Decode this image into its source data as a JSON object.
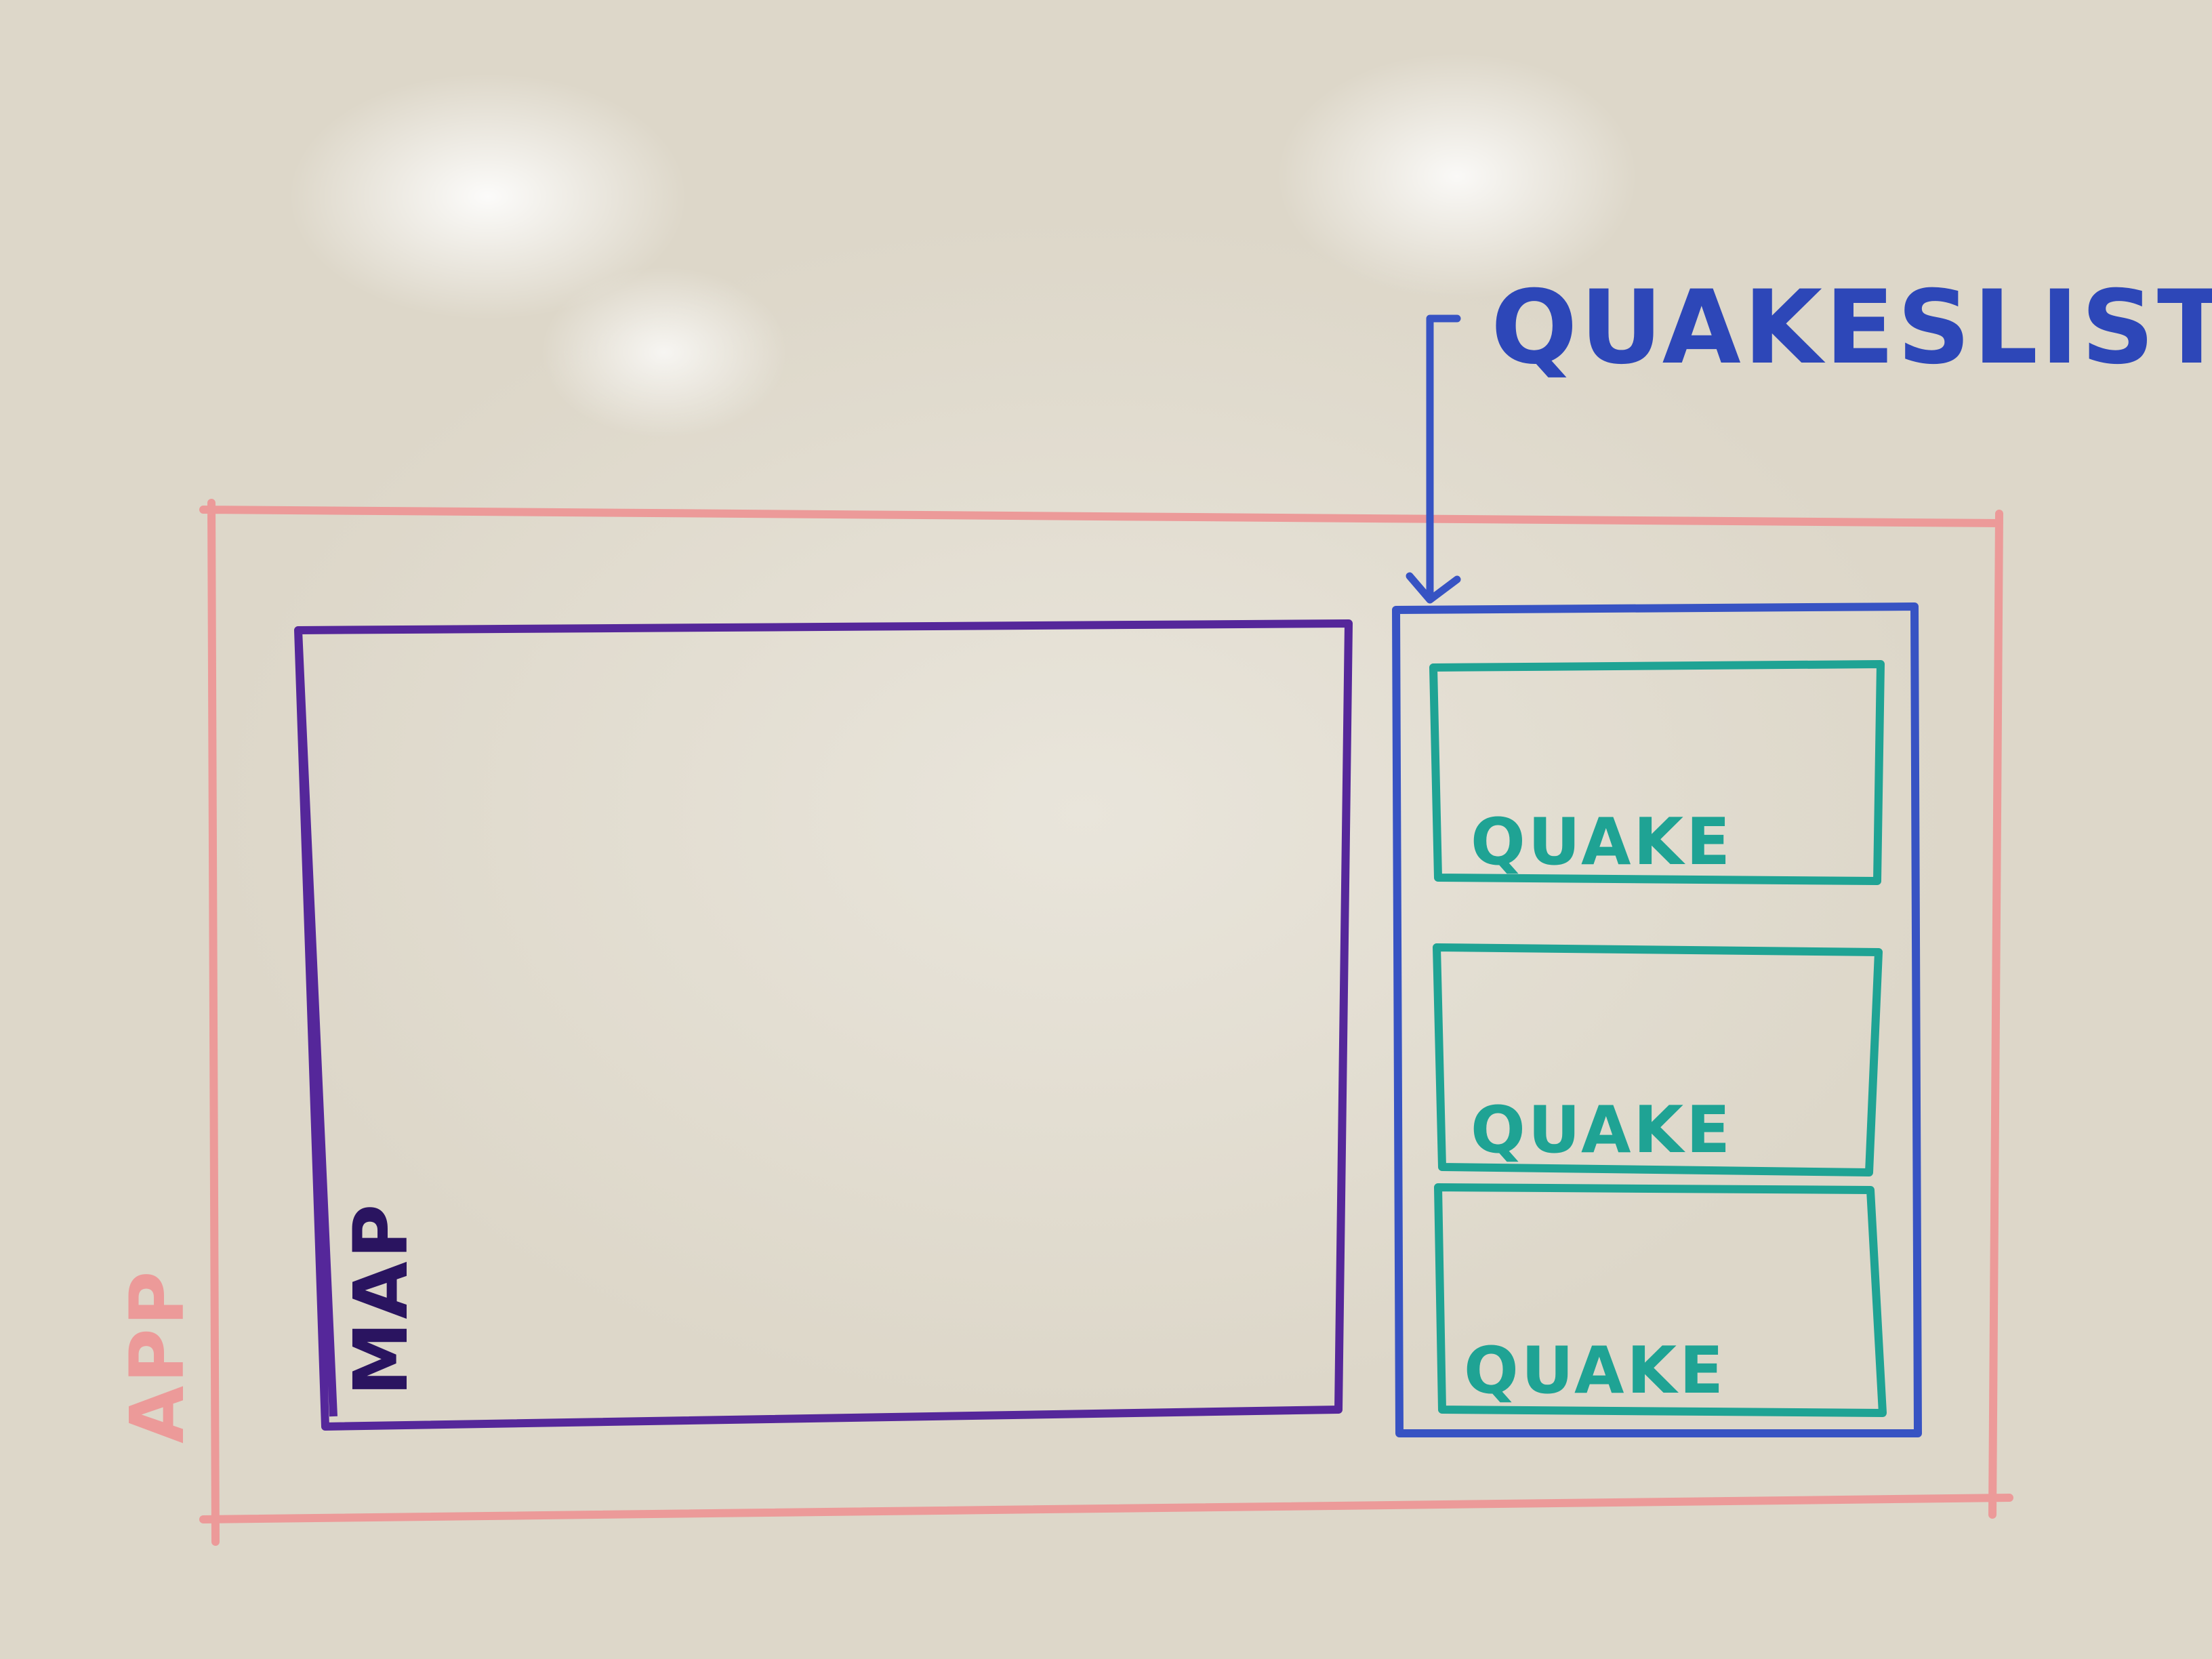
{
  "labels": {
    "app": "APP",
    "map": "MAP",
    "quakes_list": "QUAKESLIST",
    "quake_items": [
      "QUAKE",
      "QUAKE",
      "QUAKE"
    ]
  },
  "colors": {
    "app": "#ec9a99",
    "map": "#55279a",
    "quakes_list": "#3753c3",
    "quake": "#1fa394",
    "board": "#e7e2d6"
  }
}
